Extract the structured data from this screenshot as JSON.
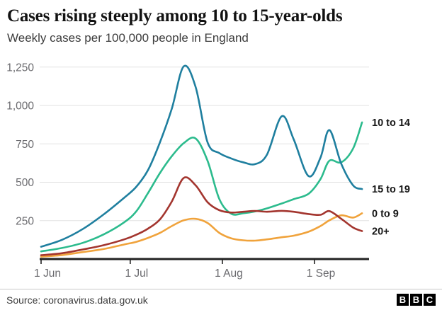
{
  "header": {
    "title": "Cases rising steeply among 10 to 15-year-olds",
    "subtitle": "Weekly cases per 100,000 people in England"
  },
  "footer": {
    "source": "Source: coronavirus.data.gov.uk",
    "logo_letters": [
      "B",
      "B",
      "C"
    ]
  },
  "colors": {
    "axis": "#222222",
    "grid": "#e2e2e2",
    "tick_label": "#6a6a6e",
    "end_label": "#161616"
  },
  "chart_data": {
    "type": "line",
    "title": "Cases rising steeply among 10 to 15-year-olds",
    "subtitle": "Weekly cases per 100,000 people in England",
    "xlabel": "",
    "ylabel": "Weekly cases per 100,000 people",
    "grid": true,
    "legend_position": "right-end-labels",
    "x_unit": "days since 1 Jun",
    "x_domain": [
      0,
      108
    ],
    "ylim": [
      0,
      1327
    ],
    "x_ticks": [
      {
        "day": 0,
        "label": "1 Jun"
      },
      {
        "day": 30,
        "label": "1 Jul"
      },
      {
        "day": 61,
        "label": "1 Aug"
      },
      {
        "day": 92,
        "label": "1 Sep"
      }
    ],
    "y_ticks": [
      {
        "value": 250,
        "label": "250"
      },
      {
        "value": 500,
        "label": "500"
      },
      {
        "value": 750,
        "label": "750"
      },
      {
        "value": 1000,
        "label": "1,000"
      },
      {
        "value": 1250,
        "label": "1,250"
      }
    ],
    "days": [
      0,
      7,
      14,
      21,
      28,
      32,
      36,
      40,
      44,
      48,
      52,
      56,
      60,
      64,
      68,
      72,
      76,
      81,
      85,
      90,
      94,
      97,
      101,
      105,
      108
    ],
    "series": [
      {
        "name": "10 to 14",
        "color": "#2cbb8d",
        "values": [
          50,
          72,
          105,
          160,
          240,
          310,
          430,
          560,
          670,
          755,
          785,
          640,
          390,
          295,
          298,
          310,
          330,
          362,
          390,
          425,
          520,
          640,
          630,
          720,
          890
        ]
      },
      {
        "name": "15 to 19",
        "color": "#1f7f9f",
        "values": [
          80,
          125,
          195,
          290,
          400,
          470,
          580,
          760,
          980,
          1255,
          1120,
          760,
          690,
          655,
          630,
          618,
          680,
          930,
          780,
          540,
          660,
          840,
          620,
          480,
          456
        ]
      },
      {
        "name": "0 to 9",
        "color": "#f0a33c",
        "values": [
          15,
          26,
          45,
          65,
          95,
          112,
          138,
          170,
          215,
          252,
          262,
          235,
          170,
          135,
          122,
          120,
          128,
          142,
          152,
          178,
          215,
          252,
          285,
          270,
          298
        ]
      },
      {
        "name": "20+",
        "color": "#a3352e",
        "values": [
          25,
          38,
          62,
          90,
          128,
          158,
          198,
          258,
          375,
          528,
          480,
          370,
          318,
          303,
          308,
          313,
          308,
          314,
          308,
          293,
          288,
          312,
          262,
          205,
          182
        ]
      }
    ]
  }
}
